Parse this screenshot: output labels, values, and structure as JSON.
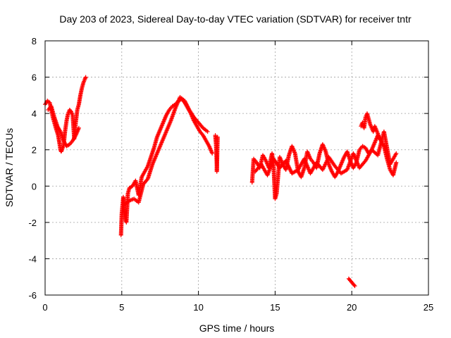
{
  "chart_data": {
    "type": "scatter",
    "title": "Day 203 of 2023, Sidereal Day-to-day VTEC variation (SDTVAR) for receiver tntr",
    "xlabel": "GPS time / hours",
    "ylabel": "SDTVAR / TECUs",
    "xlim": [
      0,
      25
    ],
    "ylim": [
      -6,
      8
    ],
    "xticks": [
      0,
      5,
      10,
      15,
      20,
      25
    ],
    "yticks": [
      -6,
      -4,
      -2,
      0,
      2,
      4,
      6,
      8
    ],
    "grid": true,
    "marker": "+",
    "color": "#ff0000",
    "series": [
      {
        "name": "segment-1",
        "x": [
          0.0,
          0.15,
          0.3,
          0.45,
          0.5,
          0.6,
          0.7,
          0.85,
          0.95,
          1.0,
          1.05,
          1.1,
          1.2,
          1.3,
          1.4,
          1.5,
          1.6,
          1.7,
          1.8,
          1.9,
          2.0,
          2.1,
          2.2,
          2.3,
          2.4,
          2.5,
          2.6,
          2.65
        ],
        "y": [
          4.5,
          4.7,
          4.6,
          4.0,
          3.8,
          3.5,
          3.2,
          2.8,
          2.3,
          2.0,
          1.9,
          2.0,
          2.2,
          3.0,
          3.6,
          4.0,
          4.2,
          4.1,
          3.9,
          2.6,
          3.5,
          4.2,
          4.5,
          5.0,
          5.4,
          5.7,
          5.9,
          6.0
        ]
      },
      {
        "name": "segment-1b",
        "x": [
          0.2,
          0.4,
          0.6,
          0.8,
          1.0,
          1.2,
          1.4,
          1.6,
          1.8,
          2.0,
          2.2
        ],
        "y": [
          4.2,
          4.4,
          3.8,
          3.3,
          3.0,
          2.5,
          2.2,
          2.3,
          2.5,
          2.8,
          3.2
        ]
      },
      {
        "name": "segment-2",
        "x": [
          4.95,
          5.0,
          5.1,
          5.2,
          5.3,
          5.4,
          5.5,
          5.7,
          5.9,
          6.1,
          6.3,
          6.5,
          6.7,
          6.9,
          7.1,
          7.3,
          7.5,
          7.7,
          7.9,
          8.1,
          8.3,
          8.5,
          8.7,
          8.9,
          9.1,
          9.3,
          9.5,
          9.7,
          9.9,
          10.1,
          10.3,
          10.5,
          10.7,
          10.9
        ],
        "y": [
          -2.7,
          -1.5,
          -0.6,
          -1.8,
          -2.0,
          -0.4,
          -0.1,
          0.0,
          0.3,
          -0.5,
          0.5,
          0.8,
          1.1,
          1.6,
          2.1,
          2.7,
          3.1,
          3.5,
          3.9,
          4.2,
          4.4,
          4.5,
          4.7,
          4.8,
          4.6,
          4.3,
          4.0,
          3.6,
          3.3,
          3.0,
          2.8,
          2.5,
          2.2,
          1.8
        ]
      },
      {
        "name": "segment-2b",
        "x": [
          5.2,
          5.5,
          5.8,
          6.1,
          6.4,
          6.7,
          7.0,
          7.3,
          7.6,
          7.9,
          8.2,
          8.5,
          8.8,
          9.1,
          9.4,
          9.7,
          10.0,
          10.3,
          10.6
        ],
        "y": [
          -1.0,
          -0.8,
          -0.7,
          -0.9,
          0.1,
          0.4,
          1.2,
          1.8,
          2.4,
          3.0,
          3.6,
          4.3,
          4.9,
          4.7,
          4.2,
          3.8,
          3.5,
          3.2,
          3.0
        ]
      },
      {
        "name": "segment-2c",
        "x": [
          11.1,
          11.15,
          11.2,
          11.2,
          11.25
        ],
        "y": [
          2.8,
          2.3,
          1.1,
          0.8,
          2.7
        ]
      },
      {
        "name": "segment-3",
        "x": [
          13.5,
          13.6,
          13.8,
          14.0,
          14.2,
          14.4,
          14.6,
          14.8,
          14.9,
          15.0,
          15.1,
          15.3,
          15.5,
          15.7,
          15.9,
          16.1,
          16.3,
          16.5,
          16.7,
          16.9,
          17.1,
          17.3,
          17.5,
          17.7,
          17.9,
          18.1,
          18.3,
          18.5,
          18.7,
          18.9,
          19.1,
          19.3,
          19.5,
          19.7,
          19.9,
          20.1,
          20.3,
          20.5,
          20.7,
          20.9,
          21.1,
          21.3,
          21.5,
          21.7,
          21.9,
          22.1,
          22.3,
          22.5,
          22.7,
          22.9
        ],
        "y": [
          0.2,
          1.5,
          1.3,
          1.0,
          1.7,
          1.4,
          1.0,
          1.8,
          1.1,
          -0.7,
          -0.4,
          1.6,
          1.2,
          0.9,
          1.7,
          2.2,
          1.8,
          0.8,
          0.5,
          1.0,
          1.9,
          1.5,
          1.3,
          1.0,
          1.8,
          2.3,
          1.9,
          1.2,
          0.8,
          0.5,
          0.8,
          1.2,
          1.6,
          1.9,
          1.4,
          1.0,
          1.3,
          2.0,
          2.2,
          2.1,
          1.8,
          2.0,
          2.4,
          2.8,
          2.5,
          2.2,
          1.5,
          0.9,
          0.6,
          1.3
        ]
      },
      {
        "name": "segment-3b",
        "x": [
          13.7,
          14.1,
          14.5,
          14.9,
          15.3,
          15.7,
          16.1,
          16.5,
          16.9,
          17.3,
          17.7,
          18.1,
          18.5,
          18.9,
          19.3,
          19.7,
          20.1,
          20.5,
          20.9,
          21.3,
          21.7,
          22.1,
          22.5,
          22.9
        ],
        "y": [
          0.8,
          1.2,
          0.6,
          1.5,
          1.0,
          1.4,
          0.7,
          0.9,
          1.5,
          0.7,
          1.3,
          0.9,
          1.6,
          1.1,
          0.7,
          0.9,
          1.8,
          1.0,
          1.4,
          2.0,
          1.7,
          3.0,
          1.2,
          1.8
        ]
      },
      {
        "name": "segment-3c",
        "x": [
          20.6,
          20.7,
          20.8,
          20.9,
          21.0,
          21.1,
          21.2,
          21.3,
          21.4,
          21.5,
          21.6,
          21.7,
          21.8
        ],
        "y": [
          3.3,
          3.5,
          3.2,
          3.8,
          4.0,
          3.7,
          3.4,
          3.2,
          3.0,
          3.3,
          3.1,
          2.9,
          2.6
        ]
      },
      {
        "name": "segment-3d",
        "x": [
          19.8,
          19.9,
          20.0,
          20.1,
          20.2
        ],
        "y": [
          -5.1,
          -5.2,
          -5.3,
          -5.4,
          -5.5
        ]
      }
    ]
  }
}
